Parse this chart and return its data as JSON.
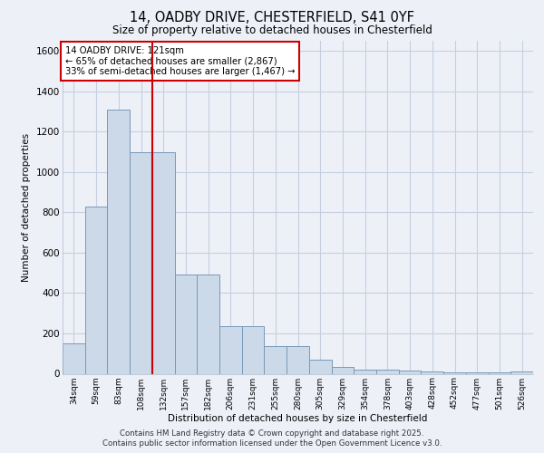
{
  "title_line1": "14, OADBY DRIVE, CHESTERFIELD, S41 0YF",
  "title_line2": "Size of property relative to detached houses in Chesterfield",
  "xlabel": "Distribution of detached houses by size in Chesterfield",
  "ylabel": "Number of detached properties",
  "categories": [
    "34sqm",
    "59sqm",
    "83sqm",
    "108sqm",
    "132sqm",
    "157sqm",
    "182sqm",
    "206sqm",
    "231sqm",
    "255sqm",
    "280sqm",
    "305sqm",
    "329sqm",
    "354sqm",
    "378sqm",
    "403sqm",
    "428sqm",
    "452sqm",
    "477sqm",
    "501sqm",
    "526sqm"
  ],
  "values": [
    150,
    830,
    1310,
    1100,
    1100,
    490,
    490,
    235,
    235,
    135,
    135,
    70,
    35,
    20,
    20,
    15,
    10,
    5,
    5,
    5,
    10
  ],
  "bar_color": "#ccd9e8",
  "bar_edge_color": "#7799bb",
  "red_line_x": 3.5,
  "annotation_text": "14 OADBY DRIVE: 121sqm\n← 65% of detached houses are smaller (2,867)\n33% of semi-detached houses are larger (1,467) →",
  "annotation_box_color": "#ffffff",
  "annotation_box_edge": "#cc0000",
  "red_line_color": "#cc0000",
  "grid_color": "#c5cfe0",
  "bg_color": "#eef0f8",
  "footer_line1": "Contains HM Land Registry data © Crown copyright and database right 2025.",
  "footer_line2": "Contains public sector information licensed under the Open Government Licence v3.0.",
  "ylim": [
    0,
    1650
  ],
  "yticks": [
    0,
    200,
    400,
    600,
    800,
    1000,
    1200,
    1400,
    1600
  ]
}
